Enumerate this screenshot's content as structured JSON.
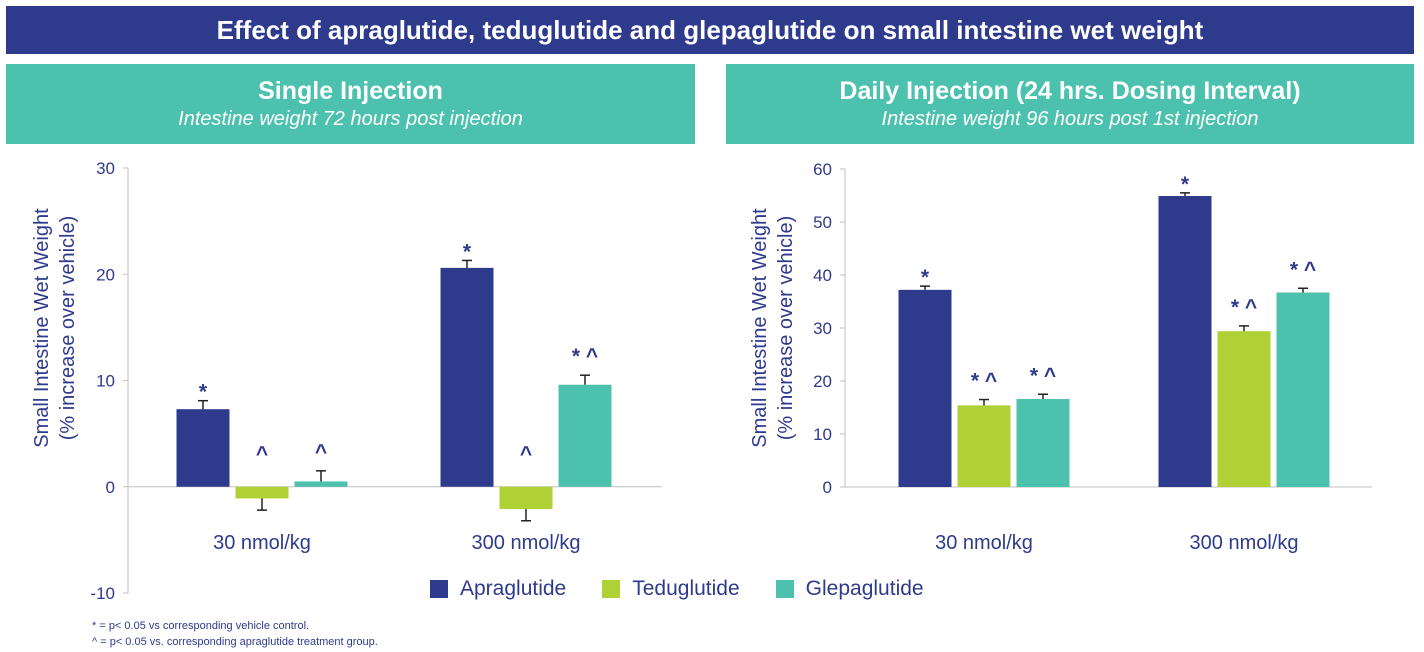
{
  "title": "Effect of apraglutide, teduglutide and glepaglutide on small intestine wet weight",
  "colors": {
    "title_bg": "#2E3A8C",
    "header_bg": "#4CC1AD",
    "text": "#2E3A8C",
    "axis": "#BFBFBF",
    "apraglutide": "#2E3A8C",
    "teduglutide": "#AFD135",
    "glepaglutide": "#4CC1AD"
  },
  "legend": [
    {
      "label": "Apraglutide",
      "color": "#2E3A8C"
    },
    {
      "label": "Teduglutide",
      "color": "#AFD135"
    },
    {
      "label": "Glepaglutide",
      "color": "#4CC1AD"
    }
  ],
  "footnotes": [
    "* = p< 0.05 vs corresponding vehicle control.",
    "^ = p< 0.05 vs. corresponding apraglutide treatment group."
  ],
  "chart_data": [
    {
      "type": "bar",
      "title": "Single Injection",
      "subtitle": "Intestine weight 72 hours post injection",
      "ylabel": "Small Intestine Wet Weight",
      "ylabel2": "(% increase over vehicle)",
      "ylim": [
        -10,
        30
      ],
      "yticks": [
        -10,
        0,
        10,
        20,
        30
      ],
      "categories": [
        "30 nmol/kg",
        "300 nmol/kg"
      ],
      "series": [
        {
          "name": "Apraglutide",
          "values": [
            7.3,
            20.6
          ],
          "errors": [
            0.8,
            0.7
          ],
          "annotations": [
            "*",
            "*"
          ]
        },
        {
          "name": "Teduglutide",
          "values": [
            -1.1,
            -2.1
          ],
          "errors": [
            1.1,
            1.1
          ],
          "annotations": [
            "^",
            "^"
          ]
        },
        {
          "name": "Glepaglutide",
          "values": [
            0.5,
            9.6
          ],
          "errors": [
            1.0,
            0.9
          ],
          "annotations": [
            "^",
            "* ^"
          ]
        }
      ]
    },
    {
      "type": "bar",
      "title": "Daily Injection (24 hrs. Dosing Interval)",
      "subtitle": "Intestine weight 96 hours post 1st injection",
      "ylabel": "Small Intestine Wet Weight",
      "ylabel2": "(% increase over vehicle)",
      "ylim": [
        0,
        60
      ],
      "yticks": [
        0,
        10,
        20,
        30,
        40,
        50,
        60
      ],
      "categories": [
        "30 nmol/kg",
        "300 nmol/kg"
      ],
      "series": [
        {
          "name": "Apraglutide",
          "values": [
            37.2,
            54.9
          ],
          "errors": [
            0.7,
            0.6
          ],
          "annotations": [
            "*",
            "*"
          ]
        },
        {
          "name": "Teduglutide",
          "values": [
            15.4,
            29.4
          ],
          "errors": [
            1.1,
            1.0
          ],
          "annotations": [
            "* ^",
            "* ^"
          ]
        },
        {
          "name": "Glepaglutide",
          "values": [
            16.6,
            36.7
          ],
          "errors": [
            0.9,
            0.8
          ],
          "annotations": [
            "* ^",
            "* ^"
          ]
        }
      ]
    }
  ]
}
